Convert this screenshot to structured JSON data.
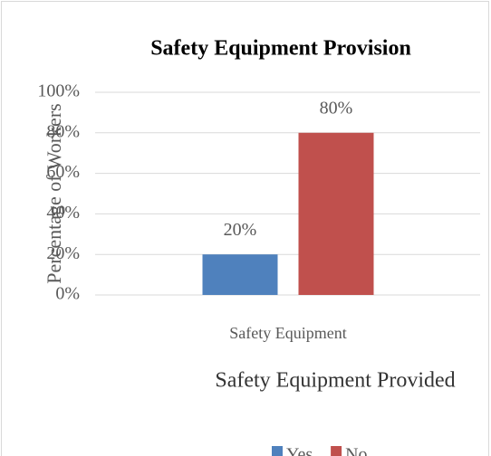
{
  "chart_data": {
    "type": "bar",
    "title": "Safety Equipment Provision",
    "categories": [
      "Safety Equipment"
    ],
    "series": [
      {
        "name": "Yes",
        "color": "#4f81bd",
        "values": [
          20
        ],
        "value_labels": [
          "20%"
        ]
      },
      {
        "name": "No",
        "color": "#c0504d",
        "values": [
          80
        ],
        "value_labels": [
          "80%"
        ]
      }
    ],
    "ylim": [
      0,
      100
    ],
    "yticks": [
      {
        "value": 0,
        "label": "0%"
      },
      {
        "value": 20,
        "label": "20%"
      },
      {
        "value": 40,
        "label": "40%"
      },
      {
        "value": 60,
        "label": "60%"
      },
      {
        "value": 80,
        "label": "80%"
      },
      {
        "value": 100,
        "label": "100%"
      }
    ],
    "xlabel": "Safety Equipment Provided",
    "ylabel": "Percentage of Workers",
    "grid": true,
    "legend": "bottom"
  }
}
